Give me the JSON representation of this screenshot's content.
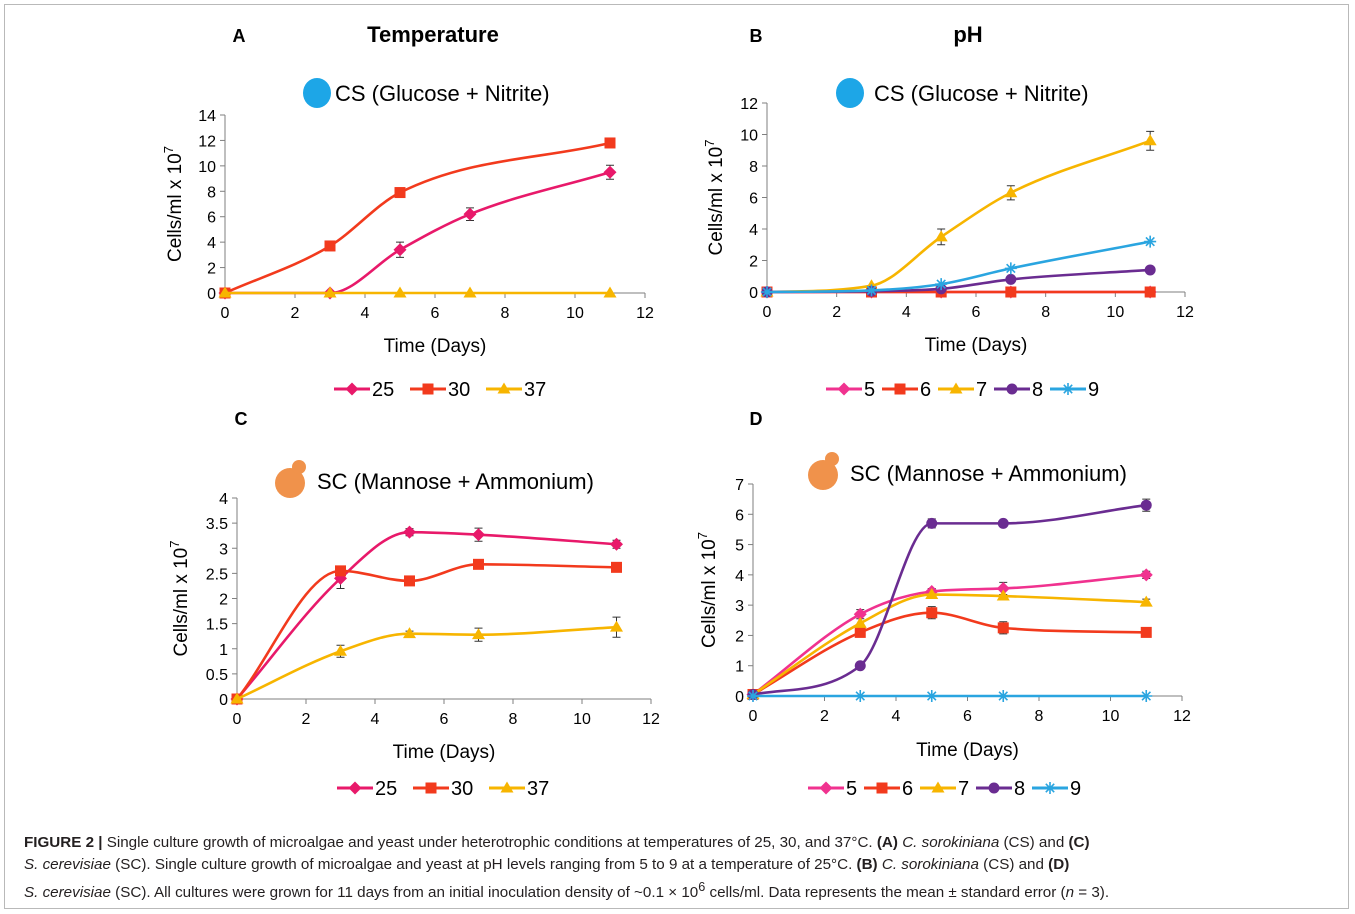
{
  "colors": {
    "t25": "#e8196a",
    "t30": "#f23a1d",
    "t37": "#f7b500",
    "ph5": "#f0328f",
    "ph6": "#f23a1d",
    "ph7": "#f7b500",
    "ph8": "#6a2c91",
    "ph9": "#2aa5e0",
    "cs_circle": "#1da6e7",
    "sc_circle": "#f0924b"
  },
  "caption": {
    "fig": "FIGURE 2 |",
    "t1": " Single culture growth of microalgae and yeast under heterotrophic conditions at temperatures of 25, 30, and 37°C. ",
    "lA": "(A)",
    "sp1": "C. sorokiniana",
    "t2": " (CS) and ",
    "lC": "(C)",
    "sp2": "S. cerevisiae",
    "t3": " (SC). Single culture growth of microalgae and yeast at pH levels ranging from 5 to 9 at a temperature of 25°C. ",
    "lB": "(B)",
    "sp3": "C. sorokiniana",
    "t4": " (CS) and ",
    "lD": "(D)",
    "sp4": "S. cerevisiae",
    "t5": " (SC). All cultures were grown for 11 days from an initial inoculation density of ~0.1 × 10",
    "sup": "6",
    "t6": " cells/ml. Data represents the mean ± standard error (",
    "n": "n",
    "t7": " = 3)."
  },
  "chart_data": [
    {
      "panel": "A",
      "heading": "Temperature",
      "organism": "CS (Glucose + Nitrite)",
      "organism_icon": "cs-circle-icon",
      "type": "line",
      "xlabel": "Time (Days)",
      "ylabel": "Cells/ml x 10^7",
      "xlim": [
        0,
        12
      ],
      "xticks": [
        0,
        2,
        4,
        6,
        8,
        10,
        12
      ],
      "ylim": [
        0,
        14
      ],
      "yticks": [
        0,
        2,
        4,
        6,
        8,
        10,
        12,
        14
      ],
      "legend_position": "bottom",
      "series": [
        {
          "name": "25",
          "color": "#e8196a",
          "marker": "diamond",
          "x": [
            0,
            3,
            5,
            7,
            11
          ],
          "y": [
            0,
            0,
            3.4,
            6.2,
            9.5
          ],
          "err": [
            0,
            0,
            0.6,
            0.5,
            0.55
          ]
        },
        {
          "name": "30",
          "color": "#f23a1d",
          "marker": "square",
          "x": [
            0,
            3,
            5,
            11
          ],
          "y": [
            0,
            3.7,
            7.9,
            11.8
          ],
          "err": [
            0,
            0,
            0,
            0
          ]
        },
        {
          "name": "37",
          "color": "#f7b500",
          "marker": "triangle",
          "x": [
            0,
            3,
            5,
            7,
            11
          ],
          "y": [
            0,
            0,
            0,
            0,
            0
          ],
          "err": [
            0,
            0,
            0,
            0,
            0
          ]
        }
      ]
    },
    {
      "panel": "B",
      "heading": "pH",
      "organism": "CS (Glucose + Nitrite)",
      "organism_icon": "cs-circle-icon",
      "type": "line",
      "xlabel": "Time (Days)",
      "ylabel": "Cells/ml x 10^7",
      "xlim": [
        0,
        12
      ],
      "xticks": [
        0,
        2,
        4,
        6,
        8,
        10,
        12
      ],
      "ylim": [
        0,
        12
      ],
      "yticks": [
        0,
        2,
        4,
        6,
        8,
        10,
        12
      ],
      "legend_position": "bottom",
      "series": [
        {
          "name": "5",
          "color": "#f0328f",
          "marker": "diamond",
          "x": [
            0,
            3,
            5,
            7,
            11
          ],
          "y": [
            0,
            0,
            0,
            0,
            0
          ],
          "err": [
            0,
            0,
            0,
            0,
            0
          ]
        },
        {
          "name": "6",
          "color": "#f23a1d",
          "marker": "square",
          "x": [
            0,
            3,
            5,
            7,
            11
          ],
          "y": [
            0,
            0,
            0,
            0,
            0
          ],
          "err": [
            0,
            0,
            0,
            0,
            0
          ]
        },
        {
          "name": "7",
          "color": "#f7b500",
          "marker": "triangle",
          "x": [
            0,
            3,
            5,
            7,
            11
          ],
          "y": [
            0,
            0.4,
            3.5,
            6.3,
            9.6
          ],
          "err": [
            0,
            0,
            0.5,
            0.45,
            0.6
          ]
        },
        {
          "name": "8",
          "color": "#6a2c91",
          "marker": "circle",
          "x": [
            0,
            3,
            5,
            7,
            11
          ],
          "y": [
            0,
            0.05,
            0.2,
            0.8,
            1.4
          ],
          "err": [
            0,
            0,
            0,
            0,
            0
          ]
        },
        {
          "name": "9",
          "color": "#2aa5e0",
          "marker": "star",
          "x": [
            0,
            3,
            5,
            7,
            11
          ],
          "y": [
            0,
            0.1,
            0.5,
            1.5,
            3.2
          ],
          "err": [
            0,
            0,
            0,
            0,
            0
          ]
        }
      ]
    },
    {
      "panel": "C",
      "heading": "",
      "organism": "SC (Mannose + Ammonium)",
      "organism_icon": "sc-yeast-icon",
      "type": "line",
      "xlabel": "Time (Days)",
      "ylabel": "Cells/ml x 10^7",
      "xlim": [
        0,
        12
      ],
      "xticks": [
        0,
        2,
        4,
        6,
        8,
        10,
        12
      ],
      "ylim": [
        0,
        4
      ],
      "yticks": [
        0,
        0.5,
        1,
        1.5,
        2,
        2.5,
        3,
        3.5,
        4
      ],
      "ytick_labels": [
        "0",
        "0.5",
        "1",
        "1.5",
        "2",
        "2.5",
        "3",
        "3.5",
        "4"
      ],
      "legend_position": "bottom",
      "series": [
        {
          "name": "25",
          "color": "#e8196a",
          "marker": "diamond",
          "x": [
            0,
            3,
            5,
            7,
            11
          ],
          "y": [
            0,
            2.4,
            3.32,
            3.27,
            3.08
          ],
          "err": [
            0,
            0.2,
            0.07,
            0.13,
            0.08
          ]
        },
        {
          "name": "30",
          "color": "#f23a1d",
          "marker": "square",
          "x": [
            0,
            3,
            5,
            7,
            11
          ],
          "y": [
            0,
            2.55,
            2.35,
            2.68,
            2.62
          ],
          "err": [
            0,
            0,
            0,
            0,
            0
          ]
        },
        {
          "name": "37",
          "color": "#f7b500",
          "marker": "triangle",
          "x": [
            0,
            3,
            5,
            7,
            11
          ],
          "y": [
            0,
            0.95,
            1.3,
            1.28,
            1.43
          ],
          "err": [
            0,
            0.12,
            0.05,
            0.13,
            0.2
          ]
        }
      ]
    },
    {
      "panel": "D",
      "heading": "",
      "organism": "SC (Mannose  + Ammonium)",
      "organism_icon": "sc-yeast-icon",
      "type": "line",
      "xlabel": "Time (Days)",
      "ylabel": "Cells/ml x 10^7",
      "xlim": [
        0,
        12
      ],
      "xticks": [
        0,
        2,
        4,
        6,
        8,
        10,
        12
      ],
      "ylim": [
        0,
        7
      ],
      "yticks": [
        0,
        1,
        2,
        3,
        4,
        5,
        6,
        7
      ],
      "legend_position": "bottom",
      "series": [
        {
          "name": "5",
          "color": "#f0328f",
          "marker": "diamond",
          "x": [
            0,
            3,
            5,
            7,
            11
          ],
          "y": [
            0.05,
            2.7,
            3.45,
            3.55,
            4.0
          ],
          "err": [
            0,
            0.15,
            0.1,
            0.2,
            0.12
          ]
        },
        {
          "name": "6",
          "color": "#f23a1d",
          "marker": "square",
          "x": [
            0,
            3,
            5,
            7,
            11
          ],
          "y": [
            0.05,
            2.1,
            2.75,
            2.25,
            2.1
          ],
          "err": [
            0,
            0.15,
            0.2,
            0.2,
            0.15
          ]
        },
        {
          "name": "7",
          "color": "#f7b500",
          "marker": "triangle",
          "x": [
            0,
            3,
            5,
            7,
            11
          ],
          "y": [
            0.05,
            2.4,
            3.35,
            3.3,
            3.1
          ],
          "err": [
            0,
            0,
            0,
            0,
            0.1
          ]
        },
        {
          "name": "8",
          "color": "#6a2c91",
          "marker": "circle",
          "x": [
            0,
            3,
            5,
            7,
            11
          ],
          "y": [
            0.05,
            1.0,
            5.7,
            5.7,
            6.3
          ],
          "err": [
            0,
            0,
            0.15,
            0,
            0.2
          ]
        },
        {
          "name": "9",
          "color": "#2aa5e0",
          "marker": "star",
          "x": [
            0,
            3,
            5,
            7,
            11
          ],
          "y": [
            0.0,
            0.0,
            0.0,
            0.0,
            0.0
          ],
          "err": [
            0,
            0,
            0,
            0,
            0
          ]
        }
      ]
    }
  ]
}
